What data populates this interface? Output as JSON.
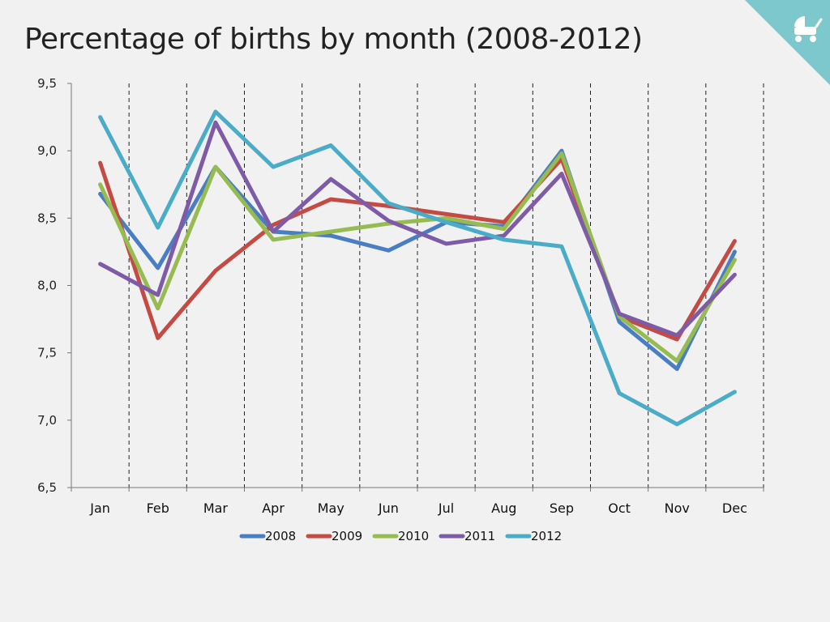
{
  "slide": {
    "title": "Percentage of births by month (2008-2012)",
    "corner_icon": "baby-stroller-icon",
    "corner_color": "#7cc8cc"
  },
  "chart_data": {
    "type": "line",
    "title": "Percentage of births by month (2008-2012)",
    "xlabel": "",
    "ylabel": "",
    "categories": [
      "Jan",
      "Feb",
      "Mar",
      "Apr",
      "May",
      "Jun",
      "Jul",
      "Aug",
      "Sep",
      "Oct",
      "Nov",
      "Dec"
    ],
    "ylim": [
      6.5,
      9.5
    ],
    "yticks": [
      6.5,
      7.0,
      7.5,
      8.0,
      8.5,
      9.0,
      9.5
    ],
    "ytick_labels": [
      "6,5",
      "7,0",
      "7,5",
      "8,0",
      "8,5",
      "9,0",
      "9,5"
    ],
    "grid": "vertical-dashed",
    "legend": "bottom",
    "series": [
      {
        "name": "2008",
        "color": "#4a7ec2",
        "values": [
          8.68,
          8.13,
          8.88,
          8.4,
          8.37,
          8.26,
          8.47,
          8.44,
          9.0,
          7.73,
          7.38,
          8.25
        ]
      },
      {
        "name": "2009",
        "color": "#c44a44",
        "values": [
          8.91,
          7.61,
          8.11,
          8.45,
          8.64,
          8.59,
          8.53,
          8.47,
          8.94,
          7.77,
          7.6,
          8.33
        ]
      },
      {
        "name": "2010",
        "color": "#96bb50",
        "values": [
          8.75,
          7.83,
          8.88,
          8.34,
          8.4,
          8.46,
          8.5,
          8.42,
          8.98,
          7.77,
          7.44,
          8.19
        ]
      },
      {
        "name": "2011",
        "color": "#7e5ba6",
        "values": [
          8.16,
          7.93,
          9.21,
          8.4,
          8.79,
          8.48,
          8.31,
          8.37,
          8.83,
          7.79,
          7.63,
          8.08
        ]
      },
      {
        "name": "2012",
        "color": "#4aacc6",
        "values": [
          9.25,
          8.43,
          9.29,
          8.88,
          9.04,
          8.61,
          8.47,
          8.34,
          8.29,
          7.2,
          6.97,
          7.21
        ]
      }
    ]
  }
}
